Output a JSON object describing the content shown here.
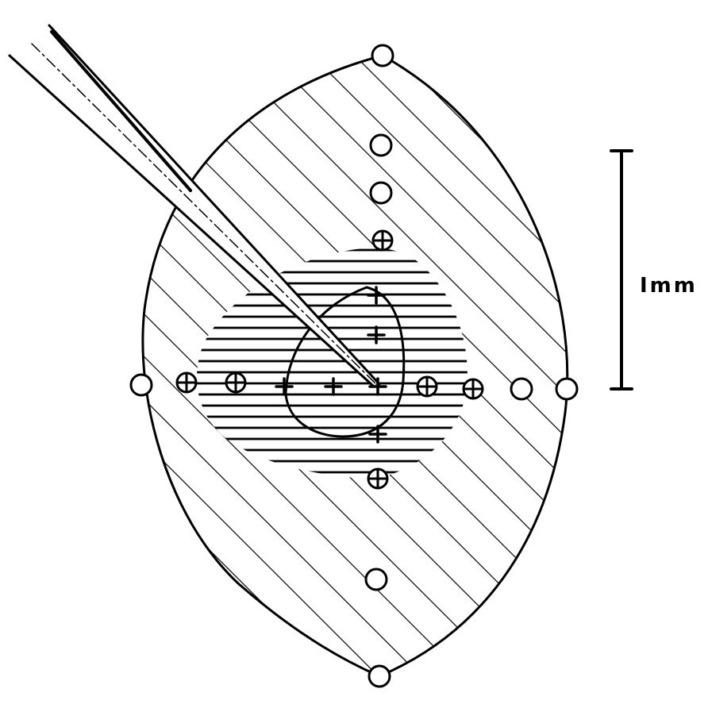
{
  "figure": {
    "scale_bar": {
      "label": "Imm"
    },
    "colors": {
      "ink": "#000000",
      "background": "#ffffff"
    }
  }
}
